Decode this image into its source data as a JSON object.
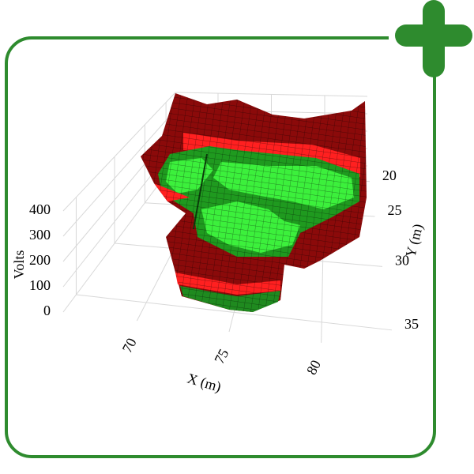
{
  "chart_data": {
    "type": "surface3d",
    "xlabel": "X (m)",
    "ylabel": "Y (m)",
    "zlabel": "Volts",
    "xlim": [
      66,
      84
    ],
    "ylim": [
      15,
      36.5
    ],
    "zlim": [
      0,
      400
    ],
    "xticks": [
      70,
      75,
      80
    ],
    "yticks": [
      20,
      25,
      30,
      35
    ],
    "zticks": [
      0,
      100,
      200,
      300,
      400
    ],
    "grid": true
  }
}
